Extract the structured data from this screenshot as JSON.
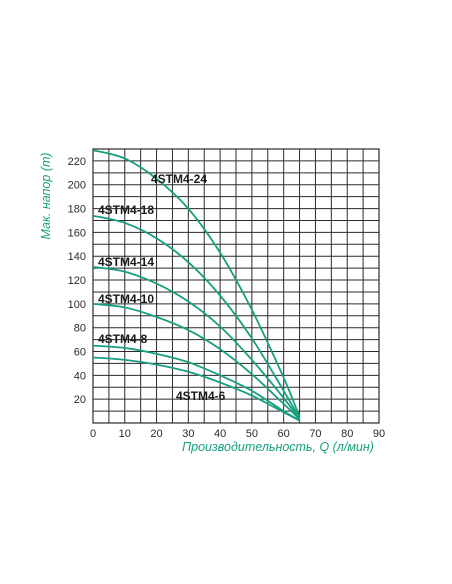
{
  "chart_data": {
    "type": "line",
    "xlabel": "Производительность, Q (л/мин)",
    "ylabel": "Мак. напор (m)",
    "xlim": [
      0,
      90
    ],
    "ylim": [
      0,
      230
    ],
    "x_ticks": [
      0,
      10,
      20,
      30,
      40,
      50,
      60,
      70,
      80,
      90
    ],
    "y_ticks": [
      20,
      40,
      60,
      80,
      100,
      120,
      140,
      160,
      180,
      200,
      220
    ],
    "grid": true,
    "line_color": "#17a07f",
    "series": [
      {
        "name": "4STM4-24",
        "x": [
          0,
          10,
          20,
          30,
          40,
          50,
          60,
          65
        ],
        "y": [
          229,
          222,
          205,
          180,
          143,
          95,
          38,
          5
        ]
      },
      {
        "name": "4STM4-18",
        "x": [
          0,
          10,
          20,
          30,
          40,
          50,
          60,
          65
        ],
        "y": [
          174,
          168,
          155,
          135,
          107,
          71,
          27,
          4
        ]
      },
      {
        "name": "4STM4-14",
        "x": [
          0,
          10,
          20,
          30,
          40,
          50,
          60,
          65
        ],
        "y": [
          131,
          127,
          117,
          102,
          81,
          53,
          21,
          3
        ]
      },
      {
        "name": "4STM4-10",
        "x": [
          0,
          10,
          20,
          30,
          40,
          50,
          60,
          65
        ],
        "y": [
          100,
          97,
          89,
          78,
          62,
          41,
          16,
          3
        ]
      },
      {
        "name": "4STM4-8",
        "x": [
          0,
          10,
          20,
          30,
          40,
          50,
          60,
          65
        ],
        "y": [
          65,
          63,
          58,
          51,
          40,
          27,
          10,
          2
        ]
      },
      {
        "name": "4STM4-6",
        "x": [
          0,
          10,
          20,
          30,
          40,
          50,
          60,
          65
        ],
        "y": [
          55,
          53,
          49,
          43,
          34,
          23,
          9,
          2
        ]
      }
    ]
  }
}
